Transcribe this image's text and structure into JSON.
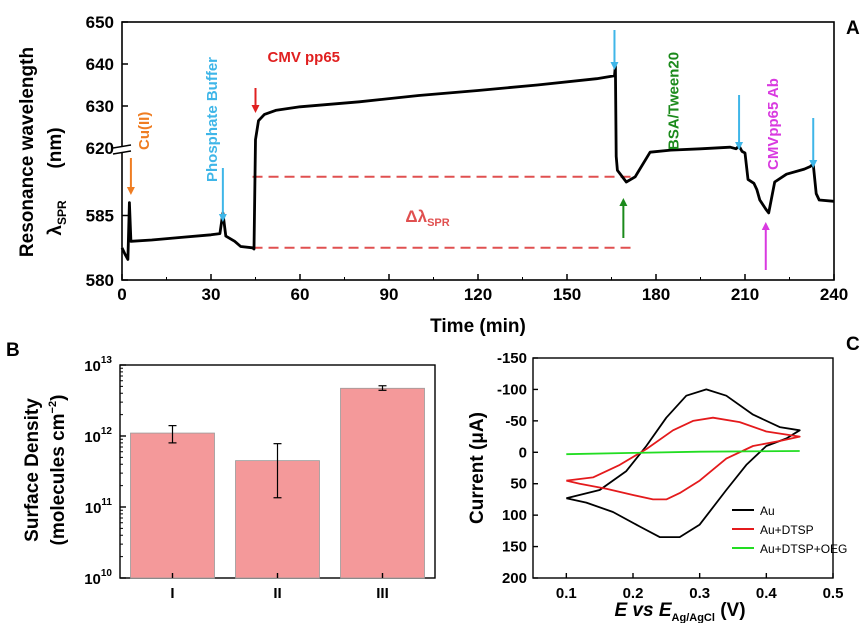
{
  "panels": {
    "a": "A",
    "b": "B",
    "c": "C"
  },
  "chart_data": [
    {
      "type": "line",
      "panel": "A",
      "xlabel": "Time (min)",
      "ylabel_line1": "Resonance wavelength",
      "ylabel_unit": "(nm)",
      "ylabel_symbol": "λ",
      "ylabel_sub": "SPR",
      "xlim": [
        0,
        240
      ],
      "xticks": [
        "0",
        "30",
        "60",
        "90",
        "120",
        "150",
        "180",
        "210",
        "240"
      ],
      "broken_y_axis": true,
      "ylim_lower": [
        580,
        590
      ],
      "ylim_upper": [
        620,
        650
      ],
      "yticks": [
        "580",
        "585",
        "620",
        "630",
        "640",
        "650"
      ],
      "series_points": [
        [
          0,
          582.5
        ],
        [
          1,
          582
        ],
        [
          2,
          581.6
        ],
        [
          2.5,
          586
        ],
        [
          3,
          583
        ],
        [
          10,
          583.1
        ],
        [
          20,
          583.3
        ],
        [
          30,
          583.5
        ],
        [
          33,
          583.6
        ],
        [
          34,
          585.2
        ],
        [
          35,
          583.4
        ],
        [
          38,
          583
        ],
        [
          40,
          582.6
        ],
        [
          44,
          582.5
        ],
        [
          44.5,
          582.4
        ],
        [
          45,
          622
        ],
        [
          46,
          626.5
        ],
        [
          48,
          628
        ],
        [
          52,
          629
        ],
        [
          60,
          629.8
        ],
        [
          80,
          631
        ],
        [
          100,
          632.5
        ],
        [
          120,
          633.7
        ],
        [
          140,
          635
        ],
        [
          160,
          636.5
        ],
        [
          166,
          637.2
        ],
        [
          166.3,
          639.6
        ],
        [
          166.6,
          618
        ],
        [
          167,
          588.5
        ],
        [
          170,
          587.6
        ],
        [
          173,
          588
        ],
        [
          178,
          619
        ],
        [
          185,
          619.5
        ],
        [
          195,
          619.8
        ],
        [
          205,
          620.2
        ],
        [
          207,
          619.8
        ],
        [
          208,
          620.5
        ],
        [
          209,
          619.2
        ],
        [
          210,
          618.8
        ],
        [
          211,
          587.8
        ],
        [
          213,
          587.5
        ],
        [
          214,
          587
        ],
        [
          215,
          586.2
        ],
        [
          217,
          585.5
        ],
        [
          218,
          585.2
        ],
        [
          220,
          587.6
        ],
        [
          224,
          588.2
        ],
        [
          230,
          588.6
        ],
        [
          232,
          588.8
        ],
        [
          233,
          589
        ],
        [
          234,
          586.7
        ],
        [
          235,
          586.2
        ],
        [
          240,
          586.1
        ]
      ],
      "annotations": [
        {
          "text": "Cu(II)",
          "color": "#ef7d22",
          "time": 3
        },
        {
          "text": "Phosphate Buffer",
          "color": "#3fb6e8",
          "time": 34
        },
        {
          "text": "CMV pp65",
          "color": "#e02020",
          "time": 45
        },
        {
          "text": "BSA/Tween20",
          "color": "#1b8a1b",
          "time": 169
        },
        {
          "text": "CMVpp65 Ab",
          "color": "#d93ae0",
          "time": 217
        }
      ],
      "shift_label_main": "Δλ",
      "shift_label_sub": "SPR",
      "shift_color": "#e05050",
      "shift_levels": [
        582.5,
        588
      ]
    },
    {
      "type": "bar",
      "panel": "B",
      "categories": [
        "I",
        "II",
        "III"
      ],
      "values": [
        1100000000000.0,
        450000000000.0,
        4700000000000.0
      ],
      "error_low": [
        800000000000.0,
        135000000000.0,
        4400000000000.0
      ],
      "error_high": [
        1400000000000.0,
        780000000000.0,
        5100000000000.0
      ],
      "ylabel_line1": "Surface Density",
      "ylabel_line2": "(molecules cm",
      "ylabel_sup": "−2",
      "ylabel_close": ")",
      "log_scale": true,
      "ylim": [
        10000000000.0,
        10000000000000.0
      ],
      "ytick_exponents": [
        "10",
        "11",
        "12",
        "13"
      ],
      "ytick_base": "10",
      "bar_color": "#f4999a"
    },
    {
      "type": "line",
      "panel": "C",
      "xlabel_parts": [
        "E",
        " vs ",
        "E",
        "Ag/AgCl",
        " (V)"
      ],
      "ylabel": "Current (μA)",
      "xlim": [
        0.05,
        0.5
      ],
      "ylim": [
        -150,
        200
      ],
      "y_inverted": true,
      "xticks": [
        "0.1",
        "0.2",
        "0.3",
        "0.4",
        "0.5"
      ],
      "yticks": [
        "-150",
        "-100",
        "-50",
        "0",
        "50",
        "100",
        "150",
        "200"
      ],
      "series": [
        {
          "name": "Au",
          "color": "#000000",
          "points": [
            [
              0.1,
              73
            ],
            [
              0.15,
              60
            ],
            [
              0.19,
              30
            ],
            [
              0.22,
              -10
            ],
            [
              0.25,
              -55
            ],
            [
              0.28,
              -90
            ],
            [
              0.31,
              -100
            ],
            [
              0.34,
              -90
            ],
            [
              0.38,
              -60
            ],
            [
              0.42,
              -40
            ],
            [
              0.45,
              -35
            ],
            [
              0.43,
              -22
            ],
            [
              0.4,
              -10
            ],
            [
              0.37,
              20
            ],
            [
              0.34,
              60
            ],
            [
              0.3,
              115
            ],
            [
              0.27,
              135
            ],
            [
              0.24,
              135
            ],
            [
              0.21,
              118
            ],
            [
              0.17,
              95
            ],
            [
              0.13,
              80
            ],
            [
              0.1,
              73
            ]
          ]
        },
        {
          "name": "Au+DTSP",
          "color": "#e41a1c",
          "points": [
            [
              0.1,
              45
            ],
            [
              0.14,
              40
            ],
            [
              0.18,
              20
            ],
            [
              0.22,
              -5
            ],
            [
              0.26,
              -35
            ],
            [
              0.29,
              -50
            ],
            [
              0.32,
              -55
            ],
            [
              0.36,
              -48
            ],
            [
              0.4,
              -33
            ],
            [
              0.45,
              -25
            ],
            [
              0.42,
              -18
            ],
            [
              0.38,
              -10
            ],
            [
              0.34,
              10
            ],
            [
              0.3,
              45
            ],
            [
              0.27,
              65
            ],
            [
              0.25,
              75
            ],
            [
              0.23,
              75
            ],
            [
              0.2,
              68
            ],
            [
              0.16,
              58
            ],
            [
              0.12,
              50
            ],
            [
              0.1,
              45
            ]
          ]
        },
        {
          "name": "Au+DTSP+OEG",
          "color": "#22dd22",
          "points": [
            [
              0.1,
              3
            ],
            [
              0.2,
              1
            ],
            [
              0.3,
              -1
            ],
            [
              0.45,
              -2
            ]
          ]
        }
      ]
    }
  ]
}
